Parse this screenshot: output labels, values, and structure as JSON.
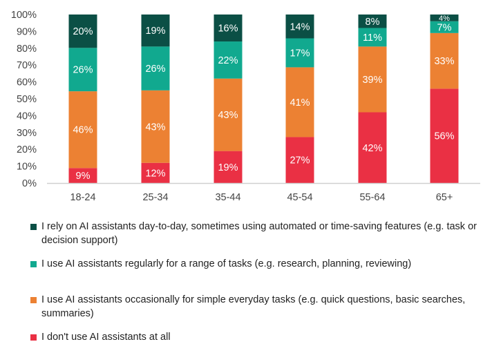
{
  "chart_data": {
    "type": "bar",
    "stacked": true,
    "categories": [
      "18-24",
      "25-34",
      "35-44",
      "45-54",
      "55-64",
      "65+"
    ],
    "ylim": [
      0,
      100
    ],
    "yticks": [
      "0%",
      "10%",
      "20%",
      "30%",
      "40%",
      "50%",
      "60%",
      "70%",
      "80%",
      "90%",
      "100%"
    ],
    "grid": false,
    "legend_placement": "bottom",
    "series": [
      {
        "name": "I don't use AI assistants at all",
        "color": "#ea3044",
        "values": [
          9,
          12,
          19,
          27,
          42,
          56
        ]
      },
      {
        "name": "I use AI assistants occasionally for simple everyday tasks (e.g. quick questions, basic searches, summaries)",
        "color": "#ec8133",
        "values": [
          46,
          43,
          43,
          41,
          39,
          33
        ]
      },
      {
        "name": "I use AI assistants regularly for a range of tasks (e.g. research, planning, reviewing)",
        "color": "#11a98f",
        "values": [
          26,
          26,
          22,
          17,
          11,
          7
        ]
      },
      {
        "name": "I rely on AI assistants day-to-day, sometimes using automated or time-saving features (e.g. task or decision support)",
        "color": "#0b4f45",
        "values": [
          20,
          19,
          16,
          14,
          8,
          4
        ]
      }
    ],
    "legend_order": [
      3,
      2,
      1,
      0
    ]
  }
}
